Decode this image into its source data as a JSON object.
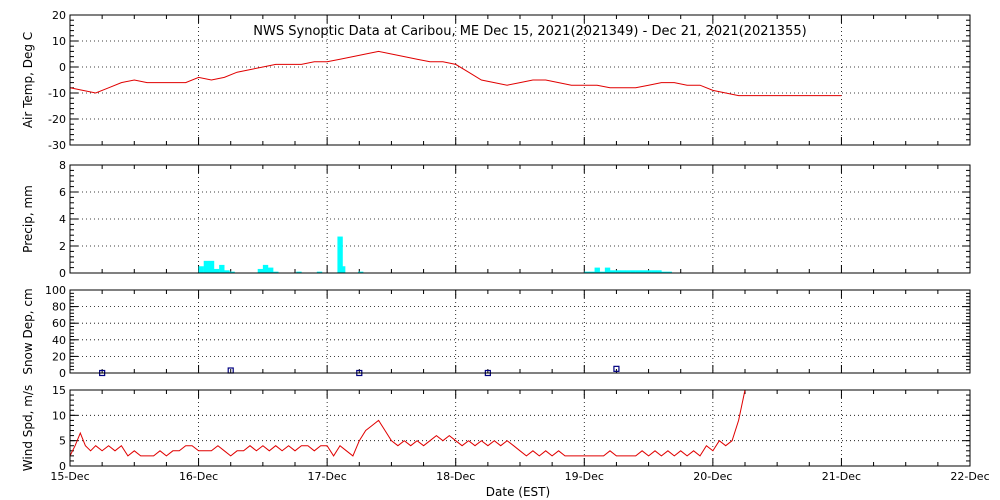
{
  "title": "NWS Synoptic Data at Caribou, ME    Dec 15, 2021(2021349) - Dec 21, 2021(2021355)",
  "xlabel": "Date (EST)",
  "x_tick_labels": [
    "15-Dec",
    "16-Dec",
    "17-Dec",
    "18-Dec",
    "19-Dec",
    "20-Dec",
    "21-Dec",
    "22-Dec"
  ],
  "colors": {
    "temp_line": "#e00000",
    "precip_bar": "#00ffff",
    "snow_marker": "#000080",
    "wind_line": "#e00000",
    "grid": "#000000"
  },
  "chart_data": [
    {
      "type": "line",
      "title": "NWS Synoptic Data at Caribou, ME    Dec 15, 2021(2021349) - Dec 21, 2021(2021355)",
      "ylabel": "Air Temp, Deg C",
      "xlabel": "",
      "xlim": [
        0,
        7
      ],
      "ylim": [
        -30,
        20
      ],
      "yticks": [
        20,
        10,
        0,
        -10,
        -20,
        -30
      ],
      "series": [
        {
          "x": [
            0,
            0.1,
            0.2,
            0.3,
            0.4,
            0.5,
            0.6,
            0.7,
            0.8,
            0.9,
            1.0,
            1.1,
            1.2,
            1.3,
            1.4,
            1.5,
            1.6,
            1.7,
            1.8,
            1.9,
            2.0,
            2.1,
            2.2,
            2.3,
            2.4,
            2.5,
            2.6,
            2.7,
            2.8,
            2.9,
            3.0,
            3.1,
            3.2,
            3.3,
            3.4,
            3.5,
            3.6,
            3.7,
            3.8,
            3.9,
            4.0,
            4.1,
            4.2,
            4.3,
            4.4,
            4.5,
            4.6,
            4.7,
            4.8,
            4.9,
            5.0,
            5.1,
            5.2,
            5.3,
            5.4,
            5.5,
            5.6,
            5.7,
            5.8,
            5.9,
            6.0
          ],
          "y": [
            -8,
            -9,
            -10,
            -8,
            -6,
            -5,
            -6,
            -6,
            -6,
            -6,
            -4,
            -5,
            -4,
            -2,
            -1,
            0,
            1,
            1,
            1,
            2,
            2,
            3,
            4,
            5,
            6,
            5,
            4,
            3,
            2,
            2,
            1,
            -2,
            -5,
            -6,
            -7,
            -6,
            -5,
            -5,
            -6,
            -7,
            -7,
            -7,
            -8,
            -8,
            -8,
            -7,
            -6,
            -6,
            -7,
            -7,
            -9,
            -10,
            -11,
            -11,
            -11,
            -11,
            -11,
            -11,
            -11,
            -11,
            -11
          ]
        }
      ]
    },
    {
      "type": "bar",
      "ylabel": "Precip, mm",
      "xlabel": "",
      "xlim": [
        0,
        7
      ],
      "ylim": [
        0,
        8
      ],
      "yticks": [
        8,
        6,
        4,
        2,
        0
      ],
      "series": [
        {
          "x": [
            1.0,
            1.04,
            1.08,
            1.12,
            1.16,
            1.2,
            1.24,
            1.46,
            1.5,
            1.54,
            1.58,
            1.76,
            1.92,
            2.08,
            2.1,
            2.24,
            4.0,
            4.04,
            4.08,
            4.12,
            4.16,
            4.2,
            4.24,
            4.28,
            4.32,
            4.36,
            4.4,
            4.44,
            4.48,
            4.52,
            4.56,
            4.6,
            4.64
          ],
          "y": [
            0.5,
            0.9,
            0.9,
            0.3,
            0.6,
            0.2,
            0.1,
            0.3,
            0.6,
            0.4,
            0.1,
            0.1,
            0.1,
            2.7,
            0.5,
            0.1,
            0.1,
            0.1,
            0.4,
            0.1,
            0.4,
            0.2,
            0.2,
            0.2,
            0.2,
            0.2,
            0.2,
            0.2,
            0.2,
            0.2,
            0.2,
            0.1,
            0.1
          ]
        }
      ]
    },
    {
      "type": "scatter",
      "ylabel": "Snow Dep, cm",
      "xlabel": "",
      "xlim": [
        0,
        7
      ],
      "ylim": [
        0,
        100
      ],
      "yticks": [
        100,
        80,
        60,
        40,
        20,
        0
      ],
      "series": [
        {
          "x": [
            0.25,
            1.25,
            2.25,
            3.25,
            4.25
          ],
          "y": [
            0,
            3,
            0,
            0,
            5
          ]
        }
      ]
    },
    {
      "type": "line",
      "ylabel": "Wind Spd, m/s",
      "xlabel": "Date (EST)",
      "xlim": [
        0,
        7
      ],
      "ylim": [
        0,
        15
      ],
      "yticks": [
        15,
        10,
        5,
        0
      ],
      "xtick_labels": [
        "15-Dec",
        "16-Dec",
        "17-Dec",
        "18-Dec",
        "19-Dec",
        "20-Dec",
        "21-Dec",
        "22-Dec"
      ],
      "series": [
        {
          "x": [
            0,
            0.04,
            0.08,
            0.12,
            0.16,
            0.2,
            0.25,
            0.3,
            0.35,
            0.4,
            0.45,
            0.5,
            0.55,
            0.6,
            0.65,
            0.7,
            0.75,
            0.8,
            0.85,
            0.9,
            0.95,
            1.0,
            1.05,
            1.1,
            1.15,
            1.2,
            1.25,
            1.3,
            1.35,
            1.4,
            1.45,
            1.5,
            1.55,
            1.6,
            1.65,
            1.7,
            1.75,
            1.8,
            1.85,
            1.9,
            1.95,
            2.0,
            2.05,
            2.1,
            2.15,
            2.2,
            2.25,
            2.3,
            2.35,
            2.4,
            2.45,
            2.5,
            2.55,
            2.6,
            2.65,
            2.7,
            2.75,
            2.8,
            2.85,
            2.9,
            2.95,
            3.0,
            3.05,
            3.1,
            3.15,
            3.2,
            3.25,
            3.3,
            3.35,
            3.4,
            3.45,
            3.5,
            3.55,
            3.6,
            3.65,
            3.7,
            3.75,
            3.8,
            3.85,
            3.9,
            3.95,
            4.0,
            4.05,
            4.1,
            4.15,
            4.2,
            4.25,
            4.3,
            4.35,
            4.4,
            4.45,
            4.5,
            4.55,
            4.6,
            4.65,
            4.7,
            4.75,
            4.8,
            4.85,
            4.9,
            4.95,
            5.0,
            5.05,
            5.1,
            5.15,
            5.2,
            5.25
          ],
          "y": [
            2,
            4,
            6.5,
            4,
            3,
            4,
            3,
            4,
            3,
            4,
            2,
            3,
            2,
            2,
            2,
            3,
            2,
            3,
            3,
            4,
            4,
            3,
            3,
            3,
            4,
            3,
            2,
            3,
            3,
            4,
            3,
            4,
            3,
            4,
            3,
            4,
            3,
            4,
            4,
            3,
            4,
            4,
            2,
            4,
            3,
            2,
            5,
            7,
            8,
            9,
            7,
            5,
            4,
            5,
            4,
            5,
            4,
            5,
            6,
            5,
            6,
            5,
            4,
            5,
            4,
            5,
            4,
            5,
            4,
            5,
            4,
            3,
            2,
            3,
            2,
            3,
            2,
            3,
            2,
            2,
            2,
            2,
            2,
            2,
            2,
            3,
            2,
            2,
            2,
            2,
            3,
            2,
            3,
            2,
            3,
            2,
            3,
            2,
            3,
            2,
            4,
            3,
            5,
            4,
            5,
            9,
            15
          ]
        }
      ]
    }
  ]
}
